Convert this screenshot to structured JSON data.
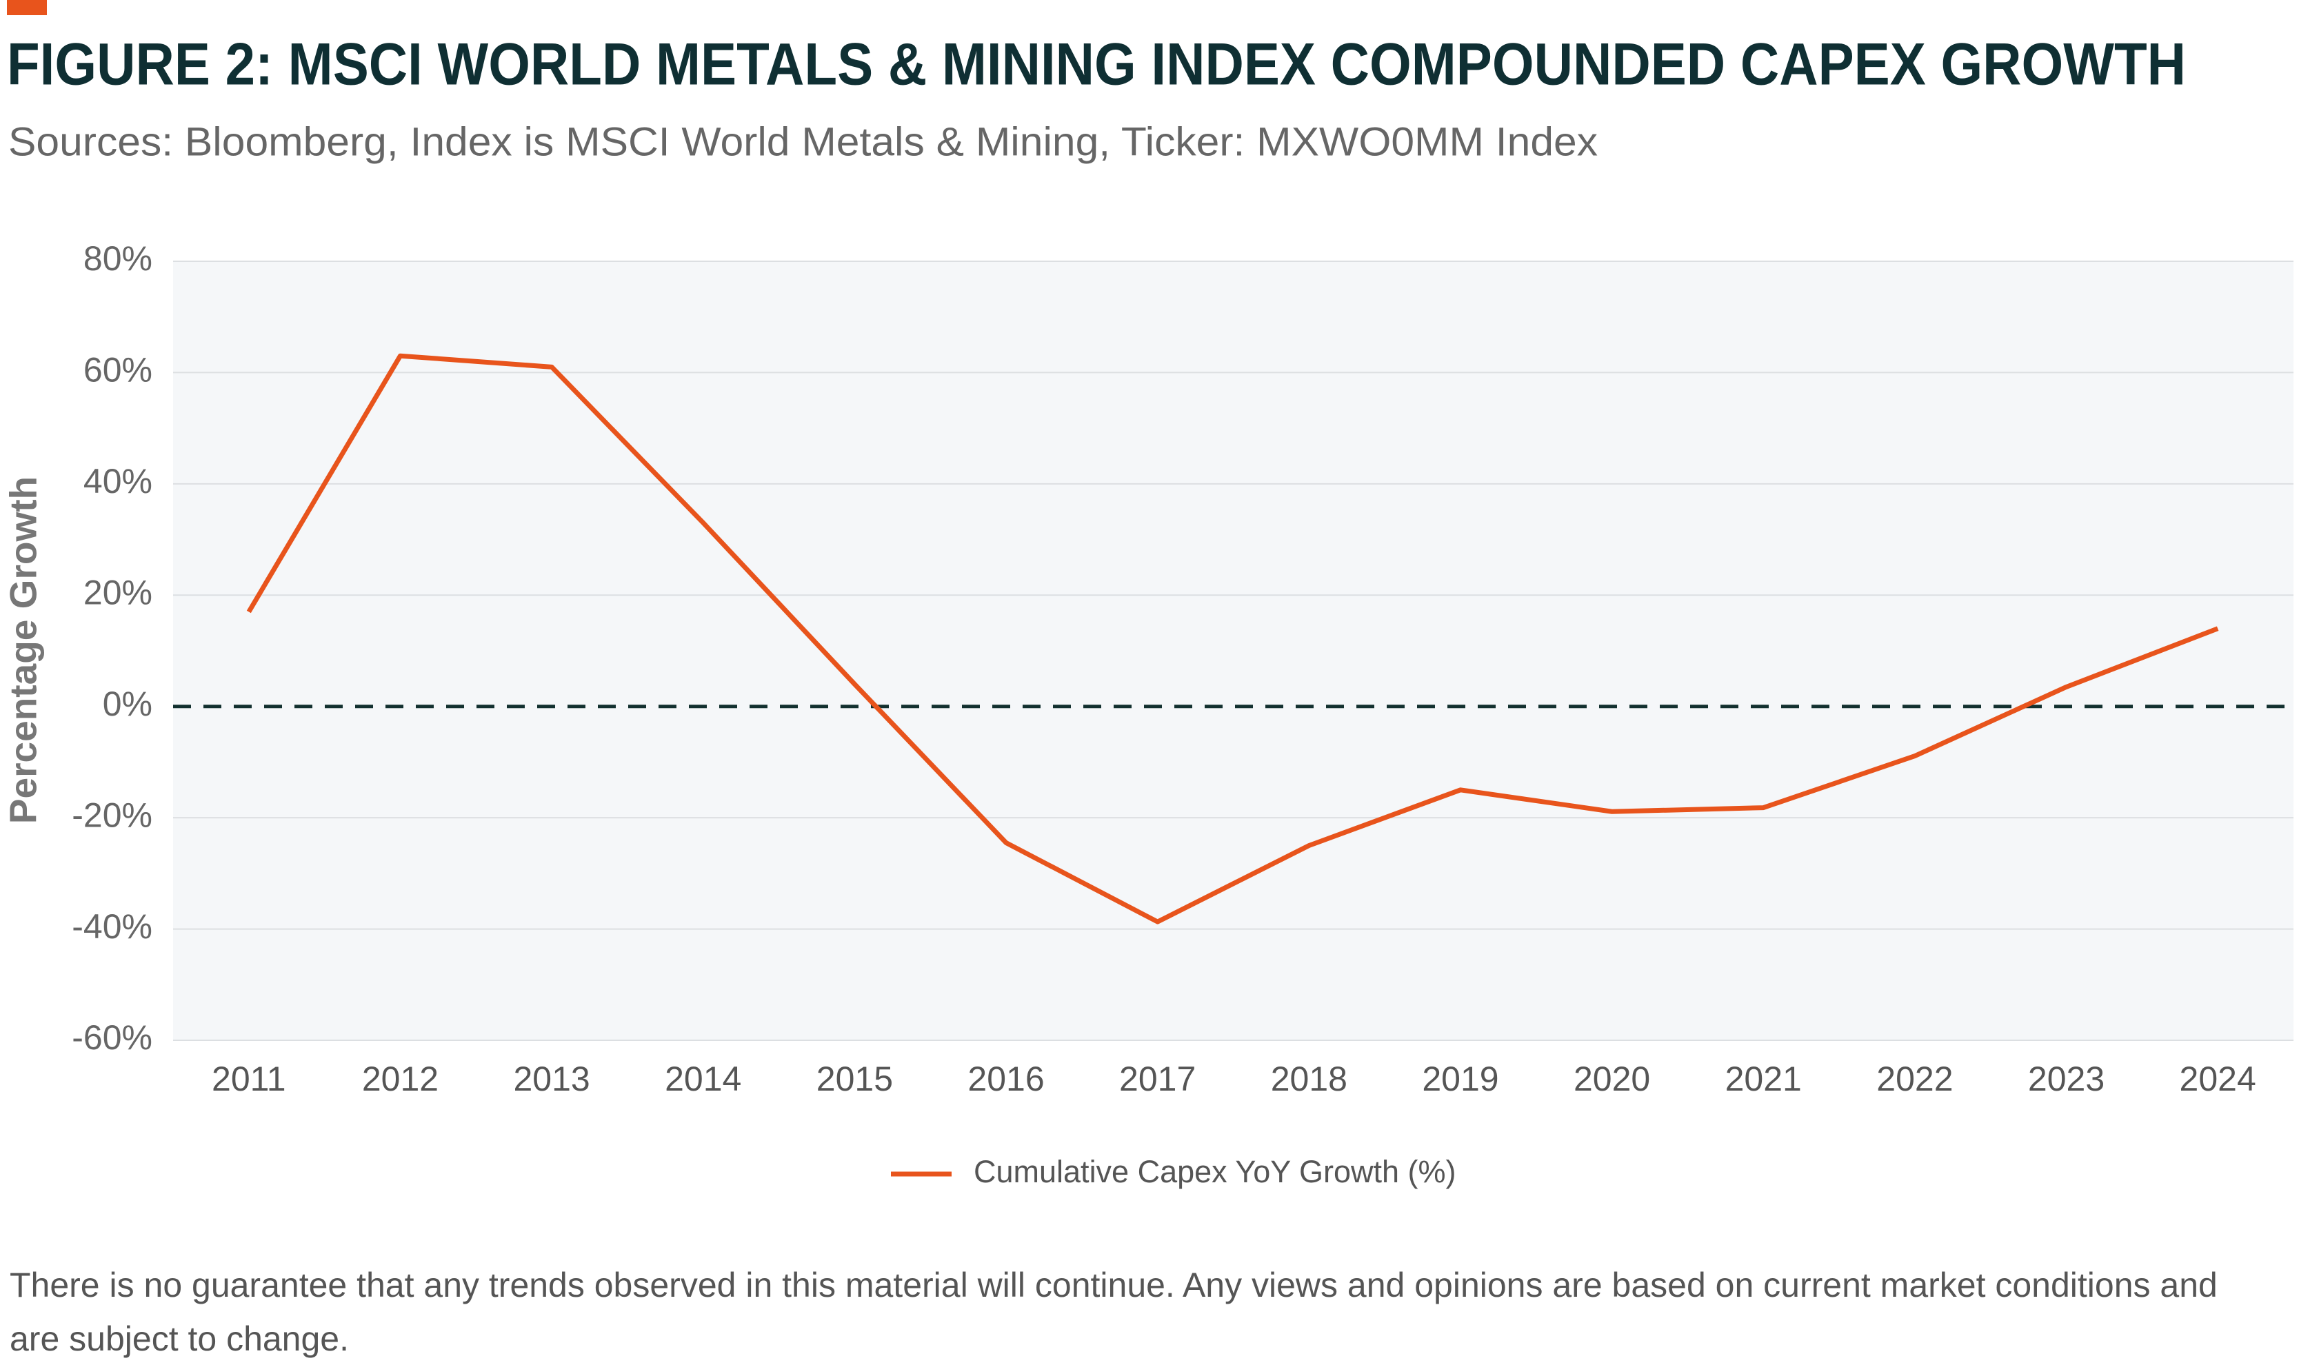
{
  "chart_data": {
    "type": "line",
    "title": "FIGURE 2: MSCI WORLD METALS & MINING INDEX COMPOUNDED CAPEX GROWTH",
    "subtitle": "Sources: Bloomberg, Index is MSCI World Metals & Mining, Ticker: MXWO0MM Index",
    "y_label": "Percentage Growth",
    "categories": [
      "2011",
      "2012",
      "2013",
      "2014",
      "2015",
      "2016",
      "2017",
      "2018",
      "2019",
      "2020",
      "2021",
      "2022",
      "2023",
      "2024"
    ],
    "series": [
      {
        "name": "Cumulative Capex YoY Growth (%)",
        "color": "#e8541c",
        "values": [
          17,
          63,
          61,
          33,
          4,
          -24.5,
          -38.7,
          -25,
          -15,
          -18.9,
          -18.2,
          -8.9,
          3.5,
          14
        ]
      }
    ],
    "ylim": [
      -60,
      80
    ],
    "yticks": [
      {
        "value": -60,
        "label": "-60%"
      },
      {
        "value": -40,
        "label": "-40%"
      },
      {
        "value": -20,
        "label": "-20%"
      },
      {
        "value": 0,
        "label": "0%"
      },
      {
        "value": 20,
        "label": "20%"
      },
      {
        "value": 40,
        "label": "40%"
      },
      {
        "value": 60,
        "label": "60%"
      },
      {
        "value": 80,
        "label": "80%"
      }
    ],
    "grid": true,
    "legend": "bottom",
    "footnote": "There is no guarantee that any trends observed in this material will continue. Any views and opinions are based on current market conditions and are subject to change."
  }
}
